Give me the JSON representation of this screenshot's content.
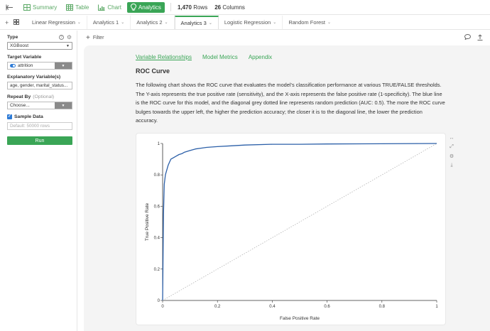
{
  "topbar": {
    "back_icon": "back-arrow-icon",
    "buttons": [
      {
        "label": "Summary",
        "icon": "summary-grid-icon",
        "active": false
      },
      {
        "label": "Table",
        "icon": "table-icon",
        "active": false
      },
      {
        "label": "Chart",
        "icon": "bar-chart-icon",
        "active": false
      },
      {
        "label": "Analytics",
        "icon": "analytics-bulb-icon",
        "active": true
      }
    ],
    "rows_value": "1,470",
    "rows_label": "Rows",
    "cols_value": "26",
    "cols_label": "Columns"
  },
  "tabs": [
    {
      "label": "Linear Regression",
      "active": false
    },
    {
      "label": "Analytics 1",
      "active": false
    },
    {
      "label": "Analytics 2",
      "active": false
    },
    {
      "label": "Analytics 3",
      "active": true
    },
    {
      "label": "Logistic Regression",
      "active": false
    },
    {
      "label": "Random Forest",
      "active": false
    }
  ],
  "left_panel": {
    "type_label": "Type",
    "type_value": "XGBoost",
    "target_label": "Target Variable",
    "target_value": "attrition",
    "explanatory_label": "Explanatory Variable(s)",
    "explanatory_value": "age, gender, marital_status...",
    "repeat_label": "Repeat By",
    "repeat_optional": "(Optional)",
    "repeat_value": "Choose...",
    "sample_label": "Sample Data",
    "sample_placeholder": "Default: 50000 rows",
    "run_label": "Run"
  },
  "filterbar": {
    "filter_label": "Filter"
  },
  "content": {
    "subtabs": [
      "Variable Relationships",
      "Model Metrics",
      "Appendix"
    ],
    "title": "ROC Curve",
    "description": "The following chart shows the ROC curve that evaluates the model's classification performance at various TRUE/FALSE thresholds. The Y-axis represents the true positive rate (sensitivity), and the X-axis represents the false positive rate (1-specificity). The blue line is the ROC curve for this model, and the diagonal grey dotted line represents random prediction (AUC: 0.5). The more the ROC curve bulges towards the upper left, the higher the prediction accuracy; the closer it is to the diagonal line, the lower the prediction accuracy."
  },
  "colors": {
    "accent": "#3aa556",
    "roc_line": "#2b5fa8",
    "diagonal": "#aaaaaa",
    "toggle": "#2e7bd6"
  },
  "chart_data": {
    "type": "line",
    "title": "",
    "xlabel": "False Positive Rate",
    "ylabel": "True Positive Rate",
    "xlim": [
      0,
      1
    ],
    "ylim": [
      0,
      1
    ],
    "x_ticks": [
      "0",
      "0.2",
      "0.4",
      "0.6",
      "0.8",
      "1"
    ],
    "y_ticks": [
      "0",
      "0.2",
      "0.4",
      "0.6",
      "0.8",
      "1"
    ],
    "grid": false,
    "series": [
      {
        "style": "solid",
        "x": [
          0,
          0.003,
          0.006,
          0.01,
          0.015,
          0.02,
          0.025,
          0.03,
          0.04,
          0.05,
          0.06,
          0.07,
          0.08,
          0.1,
          0.12,
          0.14,
          0.16,
          0.2,
          0.25,
          0.3,
          0.4,
          0.5,
          0.6,
          0.8,
          1.0
        ],
        "y": [
          0,
          0.55,
          0.74,
          0.8,
          0.83,
          0.86,
          0.88,
          0.9,
          0.91,
          0.92,
          0.93,
          0.935,
          0.945,
          0.955,
          0.965,
          0.97,
          0.975,
          0.98,
          0.985,
          0.99,
          0.995,
          0.995,
          0.997,
          0.998,
          1.0
        ]
      },
      {
        "style": "dotted",
        "x": [
          0,
          1
        ],
        "y": [
          0,
          1
        ]
      }
    ]
  }
}
